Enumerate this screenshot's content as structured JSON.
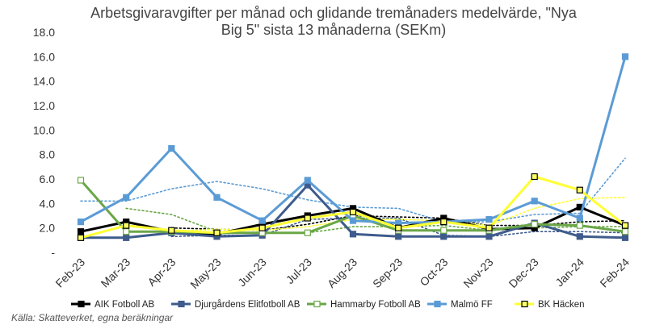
{
  "chart_data": {
    "type": "line",
    "title_lines": [
      "Arbetsgivaravgifter per månad och glidande tremånaders medelvärde, \"Nya",
      "Big 5\" sista 13 månaderna (SEKm)"
    ],
    "categories": [
      "Feb-23",
      "Mar-23",
      "Apr-23",
      "May-23",
      "Jun-23",
      "Jul-23",
      "Aug-23",
      "Sep-23",
      "Oct-23",
      "Nov-23",
      "Dec-23",
      "Jan-24",
      "Feb-24"
    ],
    "ylim": [
      0,
      18
    ],
    "yticks": [
      0,
      2,
      4,
      6,
      8,
      10,
      12,
      14,
      16,
      18
    ],
    "ytick_labels": [
      "-",
      "2.0",
      "4.0",
      "6.0",
      "8.0",
      "10.0",
      "12.0",
      "14.0",
      "16.0",
      "18.0"
    ],
    "grid": false,
    "legend_position": "bottom",
    "series": [
      {
        "name": "AIK Fotboll AB",
        "color": "#000000",
        "marker": "filled-square",
        "values": [
          1.7,
          2.5,
          1.7,
          1.5,
          2.3,
          3.0,
          3.6,
          2.0,
          2.8,
          1.9,
          2.0,
          3.7,
          2.2
        ],
        "moving_average": [
          null,
          null,
          2.0,
          1.9,
          1.8,
          2.3,
          3.0,
          2.9,
          2.8,
          2.2,
          2.2,
          2.5,
          2.6
        ]
      },
      {
        "name": "Djurgårdens Elitfotboll AB",
        "color": "#3E5B8C",
        "marker": "filled-square",
        "values": [
          1.2,
          1.2,
          1.6,
          1.3,
          1.4,
          5.5,
          1.5,
          1.3,
          1.3,
          1.3,
          2.4,
          1.3,
          1.2
        ],
        "moving_average": [
          null,
          null,
          1.3,
          1.4,
          1.4,
          2.7,
          2.8,
          2.8,
          1.4,
          1.3,
          1.7,
          1.7,
          1.6
        ]
      },
      {
        "name": "Hammarby Fotboll AB",
        "color": "#6AA646",
        "marker": "hollow-square",
        "values": [
          5.9,
          1.7,
          1.7,
          1.6,
          1.6,
          1.6,
          3.0,
          1.8,
          1.8,
          1.8,
          2.3,
          2.2,
          1.7
        ],
        "moving_average": [
          null,
          3.6,
          3.1,
          1.7,
          1.6,
          1.6,
          2.1,
          2.1,
          2.2,
          1.8,
          2.0,
          2.1,
          2.1
        ]
      },
      {
        "name": "Malmö FF",
        "color": "#5B9BD5",
        "marker": "filled-square",
        "values": [
          2.5,
          4.5,
          8.5,
          4.5,
          2.6,
          5.9,
          2.6,
          2.4,
          2.5,
          2.7,
          4.2,
          2.8,
          16.0
        ],
        "moving_average": [
          4.2,
          4.2,
          5.2,
          5.8,
          5.2,
          4.3,
          3.7,
          3.6,
          2.5,
          2.5,
          3.1,
          3.2,
          7.7
        ]
      },
      {
        "name": "BK Häcken",
        "color": "#FFFF33",
        "marker": "hollow-square",
        "values": [
          1.2,
          2.2,
          1.8,
          1.6,
          2.0,
          2.8,
          3.3,
          2.0,
          2.5,
          2.0,
          6.2,
          5.1,
          2.2
        ],
        "moving_average": [
          null,
          null,
          1.7,
          1.9,
          1.8,
          2.1,
          2.7,
          2.7,
          2.6,
          2.2,
          3.6,
          4.4,
          4.5
        ]
      }
    ]
  },
  "source": "Källa: Skatteverket, egna beräkningar"
}
